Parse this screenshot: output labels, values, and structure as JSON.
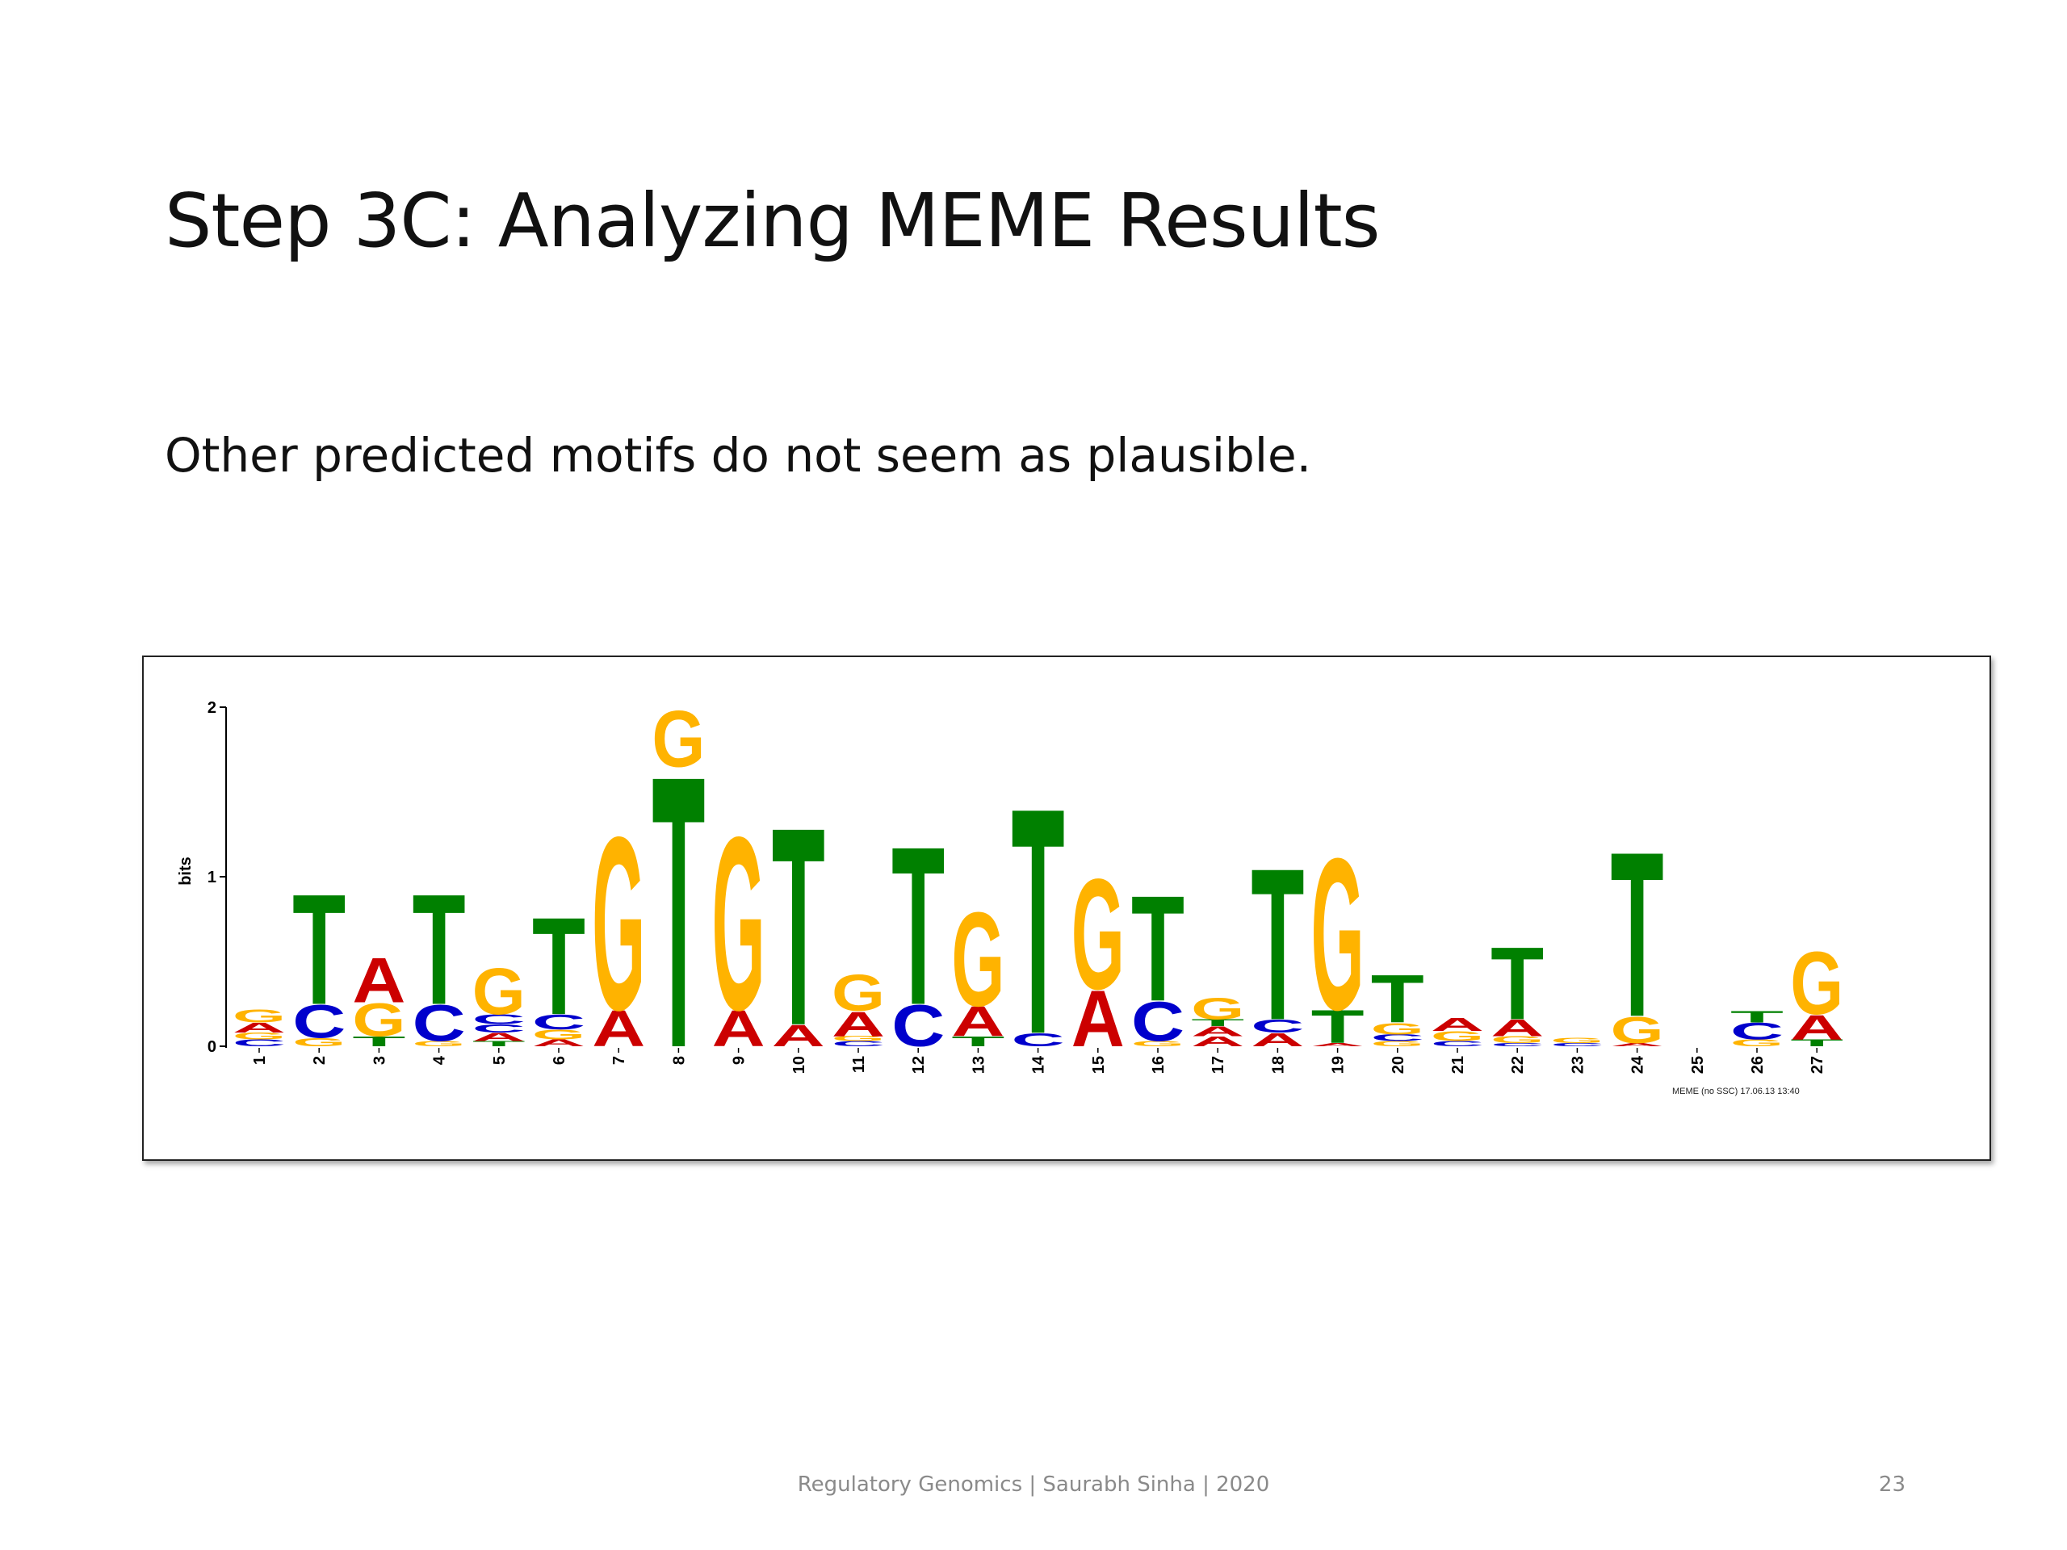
{
  "slide": {
    "title": "Step 3C: Analyzing MEME Results",
    "body": "Other predicted motifs do not seem as plausible.",
    "footer": "Regulatory Genomics  | Saurabh Sinha | 2020",
    "page_number": "23"
  },
  "colors": {
    "A": "#cc0000",
    "C": "#0000cc",
    "G": "#ffb300",
    "T": "#008000"
  },
  "chart_data": {
    "type": "sequence-logo",
    "ylabel": "bits",
    "ylim": [
      0,
      2
    ],
    "yticks": [
      "0",
      "1",
      "2"
    ],
    "credit": "MEME (no SSC) 17.06.13 13:40",
    "positions": [
      {
        "pos": "1",
        "letters": [
          [
            "C",
            0.04
          ],
          [
            "G",
            0.04
          ],
          [
            "A",
            0.06
          ],
          [
            "G",
            0.08
          ]
        ]
      },
      {
        "pos": "2",
        "letters": [
          [
            "G",
            0.05
          ],
          [
            "C",
            0.2
          ],
          [
            "T",
            0.67
          ]
        ]
      },
      {
        "pos": "3",
        "letters": [
          [
            "T",
            0.06
          ],
          [
            "G",
            0.2
          ],
          [
            "A",
            0.27
          ]
        ]
      },
      {
        "pos": "4",
        "letters": [
          [
            "G",
            0.03
          ],
          [
            "C",
            0.22
          ],
          [
            "T",
            0.67
          ]
        ]
      },
      {
        "pos": "5",
        "letters": [
          [
            "T",
            0.03
          ],
          [
            "A",
            0.05
          ],
          [
            "C",
            0.05
          ],
          [
            "C",
            0.06
          ],
          [
            "G",
            0.28
          ]
        ]
      },
      {
        "pos": "6",
        "letters": [
          [
            "A",
            0.04
          ],
          [
            "G",
            0.06
          ],
          [
            "C",
            0.09
          ],
          [
            "T",
            0.59
          ]
        ]
      },
      {
        "pos": "7",
        "letters": [
          [
            "A",
            0.22
          ],
          [
            "G",
            1.05
          ]
        ]
      },
      {
        "pos": "8",
        "letters": [
          [
            "T",
            1.65
          ],
          [
            "G",
            0.34
          ]
        ]
      },
      {
        "pos": "9",
        "letters": [
          [
            "A",
            0.22
          ],
          [
            "G",
            1.05
          ]
        ]
      },
      {
        "pos": "10",
        "letters": [
          [
            "A",
            0.13
          ],
          [
            "T",
            1.2
          ]
        ]
      },
      {
        "pos": "11",
        "letters": [
          [
            "C",
            0.03
          ],
          [
            "G",
            0.03
          ],
          [
            "A",
            0.15
          ],
          [
            "G",
            0.22
          ]
        ]
      },
      {
        "pos": "12",
        "letters": [
          [
            "C",
            0.25
          ],
          [
            "T",
            0.96
          ]
        ]
      },
      {
        "pos": "13",
        "letters": [
          [
            "T",
            0.06
          ],
          [
            "A",
            0.18
          ],
          [
            "G",
            0.57
          ]
        ]
      },
      {
        "pos": "14",
        "letters": [
          [
            "C",
            0.08
          ],
          [
            "T",
            1.37
          ]
        ]
      },
      {
        "pos": "15",
        "letters": [
          [
            "A",
            0.34
          ],
          [
            "G",
            0.67
          ]
        ]
      },
      {
        "pos": "16",
        "letters": [
          [
            "G",
            0.03
          ],
          [
            "C",
            0.24
          ],
          [
            "T",
            0.64
          ]
        ]
      },
      {
        "pos": "17",
        "letters": [
          [
            "A",
            0.06
          ],
          [
            "A",
            0.06
          ],
          [
            "T",
            0.04
          ],
          [
            "G",
            0.13
          ]
        ]
      },
      {
        "pos": "18",
        "letters": [
          [
            "A",
            0.08
          ],
          [
            "C",
            0.08
          ],
          [
            "T",
            0.92
          ]
        ]
      },
      {
        "pos": "19",
        "letters": [
          [
            "A",
            0.02
          ],
          [
            "T",
            0.2
          ],
          [
            "G",
            0.92
          ]
        ]
      },
      {
        "pos": "20",
        "letters": [
          [
            "G",
            0.03
          ],
          [
            "C",
            0.04
          ],
          [
            "G",
            0.07
          ],
          [
            "T",
            0.29
          ]
        ]
      },
      {
        "pos": "21",
        "letters": [
          [
            "C",
            0.03
          ],
          [
            "G",
            0.06
          ],
          [
            "A",
            0.08
          ]
        ]
      },
      {
        "pos": "22",
        "letters": [
          [
            "C",
            0.02
          ],
          [
            "G",
            0.04
          ],
          [
            "A",
            0.1
          ],
          [
            "T",
            0.44
          ]
        ]
      },
      {
        "pos": "23",
        "letters": [
          [
            "C",
            0.02
          ],
          [
            "G",
            0.03
          ]
        ]
      },
      {
        "pos": "24",
        "letters": [
          [
            "A",
            0.02
          ],
          [
            "G",
            0.16
          ],
          [
            "T",
            1.0
          ]
        ]
      },
      {
        "pos": "25",
        "letters": []
      },
      {
        "pos": "26",
        "letters": [
          [
            "G",
            0.04
          ],
          [
            "C",
            0.1
          ],
          [
            "T",
            0.07
          ]
        ]
      },
      {
        "pos": "27",
        "letters": [
          [
            "T",
            0.04
          ],
          [
            "A",
            0.15
          ],
          [
            "G",
            0.38
          ]
        ]
      }
    ]
  }
}
